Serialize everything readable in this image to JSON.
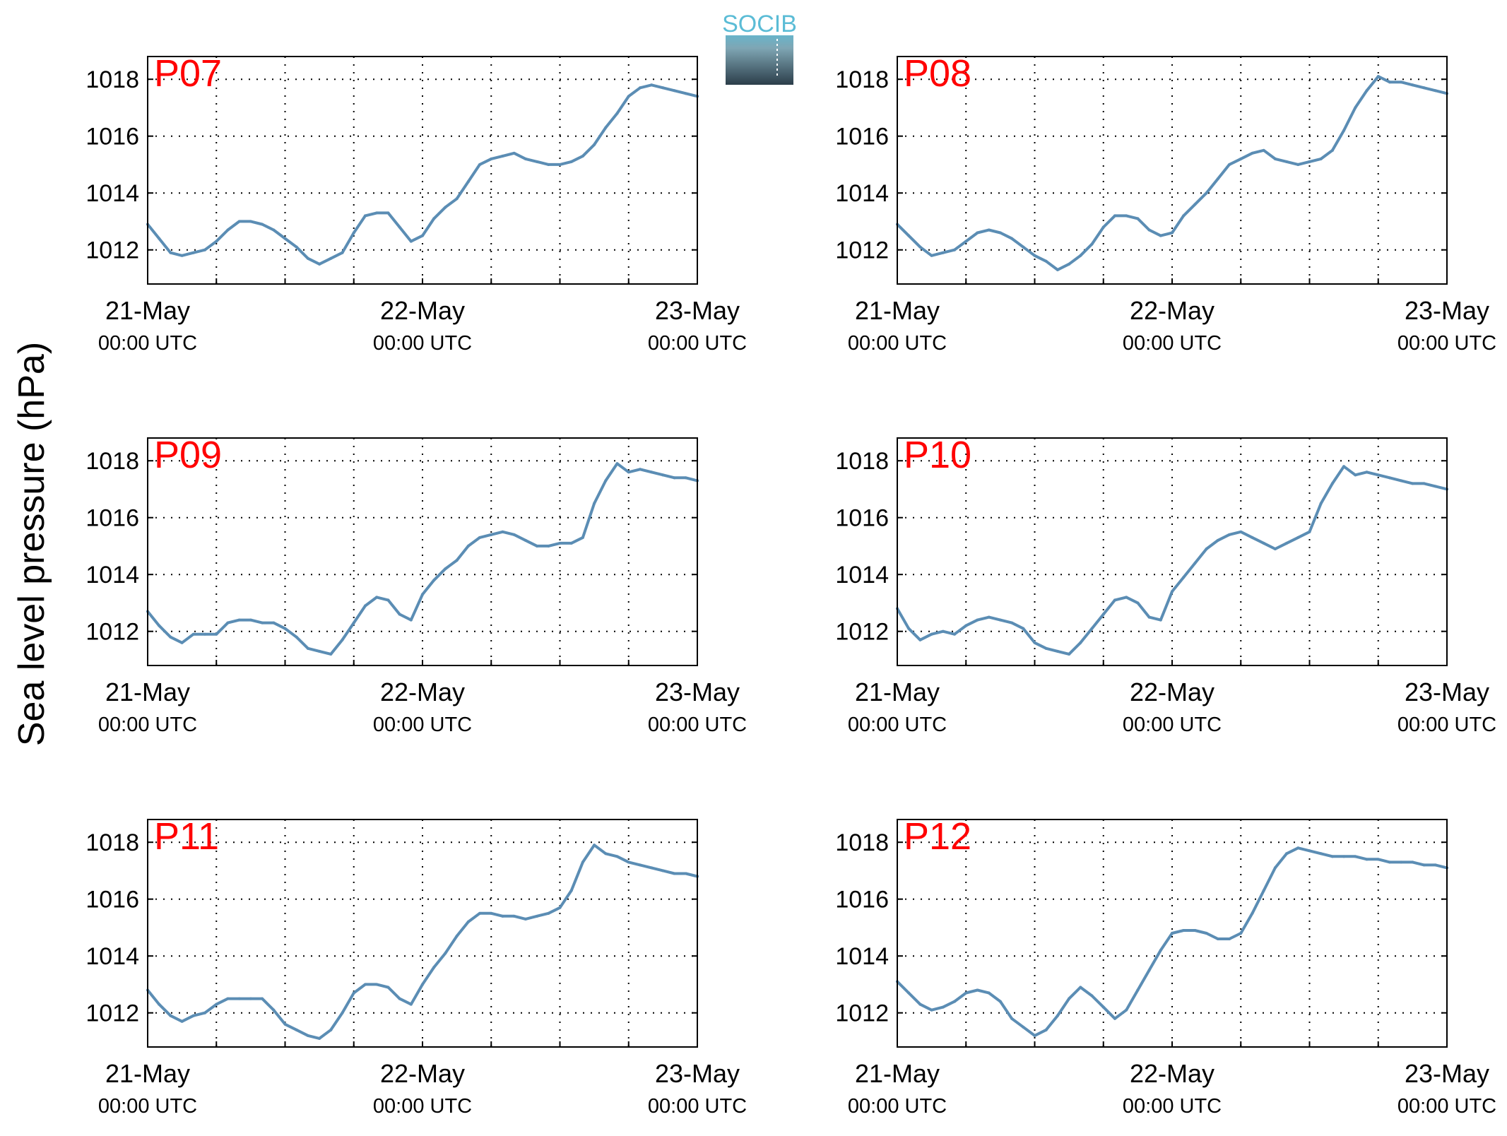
{
  "figure": {
    "ylabel": "Sea level pressure (hPa)",
    "logo_text": "SOCIB",
    "line_color": "#5b8db4",
    "label_color": "#ff0000",
    "grid": "dotted"
  },
  "chart_data": [
    {
      "type": "line",
      "label": "P07",
      "x_ticks": [
        "21-May",
        "22-May",
        "23-May"
      ],
      "x_subticks": [
        "00:00 UTC",
        "00:00 UTC",
        "00:00 UTC"
      ],
      "x_range_hours": [
        0,
        48
      ],
      "ylim": [
        1010.8,
        1018.8
      ],
      "yticks": [
        1012,
        1014,
        1016,
        1018
      ],
      "x": [
        0,
        1,
        2,
        3,
        4,
        5,
        6,
        7,
        8,
        9,
        10,
        11,
        12,
        13,
        14,
        15,
        16,
        17,
        18,
        19,
        20,
        21,
        22,
        23,
        24,
        25,
        26,
        27,
        28,
        29,
        30,
        31,
        32,
        33,
        34,
        35,
        36,
        37,
        38,
        39,
        40,
        41,
        42,
        43,
        44,
        45,
        46,
        47,
        48
      ],
      "y": [
        1012.9,
        1012.4,
        1011.9,
        1011.8,
        1011.9,
        1012.0,
        1012.3,
        1012.7,
        1013.0,
        1013.0,
        1012.9,
        1012.7,
        1012.4,
        1012.1,
        1011.7,
        1011.5,
        1011.7,
        1011.9,
        1012.6,
        1013.2,
        1013.3,
        1013.3,
        1012.8,
        1012.3,
        1012.5,
        1013.1,
        1013.5,
        1013.8,
        1014.4,
        1015.0,
        1015.2,
        1015.3,
        1015.4,
        1015.2,
        1015.1,
        1015.0,
        1015.0,
        1015.1,
        1015.3,
        1015.7,
        1016.3,
        1016.8,
        1017.4,
        1017.7,
        1017.8,
        1017.7,
        1017.6,
        1017.5,
        1017.4
      ]
    },
    {
      "type": "line",
      "label": "P08",
      "x_ticks": [
        "21-May",
        "22-May",
        "23-May"
      ],
      "x_subticks": [
        "00:00 UTC",
        "00:00 UTC",
        "00:00 UTC"
      ],
      "x_range_hours": [
        0,
        48
      ],
      "ylim": [
        1010.8,
        1018.8
      ],
      "yticks": [
        1012,
        1014,
        1016,
        1018
      ],
      "x": [
        0,
        1,
        2,
        3,
        4,
        5,
        6,
        7,
        8,
        9,
        10,
        11,
        12,
        13,
        14,
        15,
        16,
        17,
        18,
        19,
        20,
        21,
        22,
        23,
        24,
        25,
        26,
        27,
        28,
        29,
        30,
        31,
        32,
        33,
        34,
        35,
        36,
        37,
        38,
        39,
        40,
        41,
        42,
        43,
        44,
        45,
        46,
        47,
        48
      ],
      "y": [
        1012.9,
        1012.5,
        1012.1,
        1011.8,
        1011.9,
        1012.0,
        1012.3,
        1012.6,
        1012.7,
        1012.6,
        1012.4,
        1012.1,
        1011.8,
        1011.6,
        1011.3,
        1011.5,
        1011.8,
        1012.2,
        1012.8,
        1013.2,
        1013.2,
        1013.1,
        1012.7,
        1012.5,
        1012.6,
        1013.2,
        1013.6,
        1014.0,
        1014.5,
        1015.0,
        1015.2,
        1015.4,
        1015.5,
        1015.2,
        1015.1,
        1015.0,
        1015.1,
        1015.2,
        1015.5,
        1016.2,
        1017.0,
        1017.6,
        1018.1,
        1017.9,
        1017.9,
        1017.8,
        1017.7,
        1017.6,
        1017.5
      ]
    },
    {
      "type": "line",
      "label": "P09",
      "x_ticks": [
        "21-May",
        "22-May",
        "23-May"
      ],
      "x_subticks": [
        "00:00 UTC",
        "00:00 UTC",
        "00:00 UTC"
      ],
      "x_range_hours": [
        0,
        48
      ],
      "ylim": [
        1010.8,
        1018.8
      ],
      "yticks": [
        1012,
        1014,
        1016,
        1018
      ],
      "x": [
        0,
        1,
        2,
        3,
        4,
        5,
        6,
        7,
        8,
        9,
        10,
        11,
        12,
        13,
        14,
        15,
        16,
        17,
        18,
        19,
        20,
        21,
        22,
        23,
        24,
        25,
        26,
        27,
        28,
        29,
        30,
        31,
        32,
        33,
        34,
        35,
        36,
        37,
        38,
        39,
        40,
        41,
        42,
        43,
        44,
        45,
        46,
        47,
        48
      ],
      "y": [
        1012.7,
        1012.2,
        1011.8,
        1011.6,
        1011.9,
        1011.9,
        1011.9,
        1012.3,
        1012.4,
        1012.4,
        1012.3,
        1012.3,
        1012.1,
        1011.8,
        1011.4,
        1011.3,
        1011.2,
        1011.7,
        1012.3,
        1012.9,
        1013.2,
        1013.1,
        1012.6,
        1012.4,
        1013.3,
        1013.8,
        1014.2,
        1014.5,
        1015.0,
        1015.3,
        1015.4,
        1015.5,
        1015.4,
        1015.2,
        1015.0,
        1015.0,
        1015.1,
        1015.1,
        1015.3,
        1016.5,
        1017.3,
        1017.9,
        1017.6,
        1017.7,
        1017.6,
        1017.5,
        1017.4,
        1017.4,
        1017.3
      ]
    },
    {
      "type": "line",
      "label": "P10",
      "x_ticks": [
        "21-May",
        "22-May",
        "23-May"
      ],
      "x_subticks": [
        "00:00 UTC",
        "00:00 UTC",
        "00:00 UTC"
      ],
      "x_range_hours": [
        0,
        48
      ],
      "ylim": [
        1010.8,
        1018.8
      ],
      "yticks": [
        1012,
        1014,
        1016,
        1018
      ],
      "x": [
        0,
        1,
        2,
        3,
        4,
        5,
        6,
        7,
        8,
        9,
        10,
        11,
        12,
        13,
        14,
        15,
        16,
        17,
        18,
        19,
        20,
        21,
        22,
        23,
        24,
        25,
        26,
        27,
        28,
        29,
        30,
        31,
        32,
        33,
        34,
        35,
        36,
        37,
        38,
        39,
        40,
        41,
        42,
        43,
        44,
        45,
        46,
        47,
        48
      ],
      "y": [
        1012.8,
        1012.1,
        1011.7,
        1011.9,
        1012.0,
        1011.9,
        1012.2,
        1012.4,
        1012.5,
        1012.4,
        1012.3,
        1012.1,
        1011.6,
        1011.4,
        1011.3,
        1011.2,
        1011.6,
        1012.1,
        1012.6,
        1013.1,
        1013.2,
        1013.0,
        1012.5,
        1012.4,
        1013.4,
        1013.9,
        1014.4,
        1014.9,
        1015.2,
        1015.4,
        1015.5,
        1015.3,
        1015.1,
        1014.9,
        1015.1,
        1015.3,
        1015.5,
        1016.5,
        1017.2,
        1017.8,
        1017.5,
        1017.6,
        1017.5,
        1017.4,
        1017.3,
        1017.2,
        1017.2,
        1017.1,
        1017.0
      ]
    },
    {
      "type": "line",
      "label": "P11",
      "x_ticks": [
        "21-May",
        "22-May",
        "23-May"
      ],
      "x_subticks": [
        "00:00 UTC",
        "00:00 UTC",
        "00:00 UTC"
      ],
      "x_range_hours": [
        0,
        48
      ],
      "ylim": [
        1010.8,
        1018.8
      ],
      "yticks": [
        1012,
        1014,
        1016,
        1018
      ],
      "x": [
        0,
        1,
        2,
        3,
        4,
        5,
        6,
        7,
        8,
        9,
        10,
        11,
        12,
        13,
        14,
        15,
        16,
        17,
        18,
        19,
        20,
        21,
        22,
        23,
        24,
        25,
        26,
        27,
        28,
        29,
        30,
        31,
        32,
        33,
        34,
        35,
        36,
        37,
        38,
        39,
        40,
        41,
        42,
        43,
        44,
        45,
        46,
        47,
        48
      ],
      "y": [
        1012.8,
        1012.3,
        1011.9,
        1011.7,
        1011.9,
        1012.0,
        1012.3,
        1012.5,
        1012.5,
        1012.5,
        1012.5,
        1012.1,
        1011.6,
        1011.4,
        1011.2,
        1011.1,
        1011.4,
        1012.0,
        1012.7,
        1013.0,
        1013.0,
        1012.9,
        1012.5,
        1012.3,
        1013.0,
        1013.6,
        1014.1,
        1014.7,
        1015.2,
        1015.5,
        1015.5,
        1015.4,
        1015.4,
        1015.3,
        1015.4,
        1015.5,
        1015.7,
        1016.3,
        1017.3,
        1017.9,
        1017.6,
        1017.5,
        1017.3,
        1017.2,
        1017.1,
        1017.0,
        1016.9,
        1016.9,
        1016.8
      ]
    },
    {
      "type": "line",
      "label": "P12",
      "x_ticks": [
        "21-May",
        "22-May",
        "23-May"
      ],
      "x_subticks": [
        "00:00 UTC",
        "00:00 UTC",
        "00:00 UTC"
      ],
      "x_range_hours": [
        0,
        48
      ],
      "ylim": [
        1010.8,
        1018.8
      ],
      "yticks": [
        1012,
        1014,
        1016,
        1018
      ],
      "x": [
        0,
        1,
        2,
        3,
        4,
        5,
        6,
        7,
        8,
        9,
        10,
        11,
        12,
        13,
        14,
        15,
        16,
        17,
        18,
        19,
        20,
        21,
        22,
        23,
        24,
        25,
        26,
        27,
        28,
        29,
        30,
        31,
        32,
        33,
        34,
        35,
        36,
        37,
        38,
        39,
        40,
        41,
        42,
        43,
        44,
        45,
        46,
        47,
        48
      ],
      "y": [
        1013.1,
        1012.7,
        1012.3,
        1012.1,
        1012.2,
        1012.4,
        1012.7,
        1012.8,
        1012.7,
        1012.4,
        1011.8,
        1011.5,
        1011.2,
        1011.4,
        1011.9,
        1012.5,
        1012.9,
        1012.6,
        1012.2,
        1011.8,
        1012.1,
        1012.8,
        1013.5,
        1014.2,
        1014.8,
        1014.9,
        1014.9,
        1014.8,
        1014.6,
        1014.6,
        1014.8,
        1015.5,
        1016.3,
        1017.1,
        1017.6,
        1017.8,
        1017.7,
        1017.6,
        1017.5,
        1017.5,
        1017.5,
        1017.4,
        1017.4,
        1017.3,
        1017.3,
        1017.3,
        1017.2,
        1017.2,
        1017.1
      ]
    }
  ]
}
